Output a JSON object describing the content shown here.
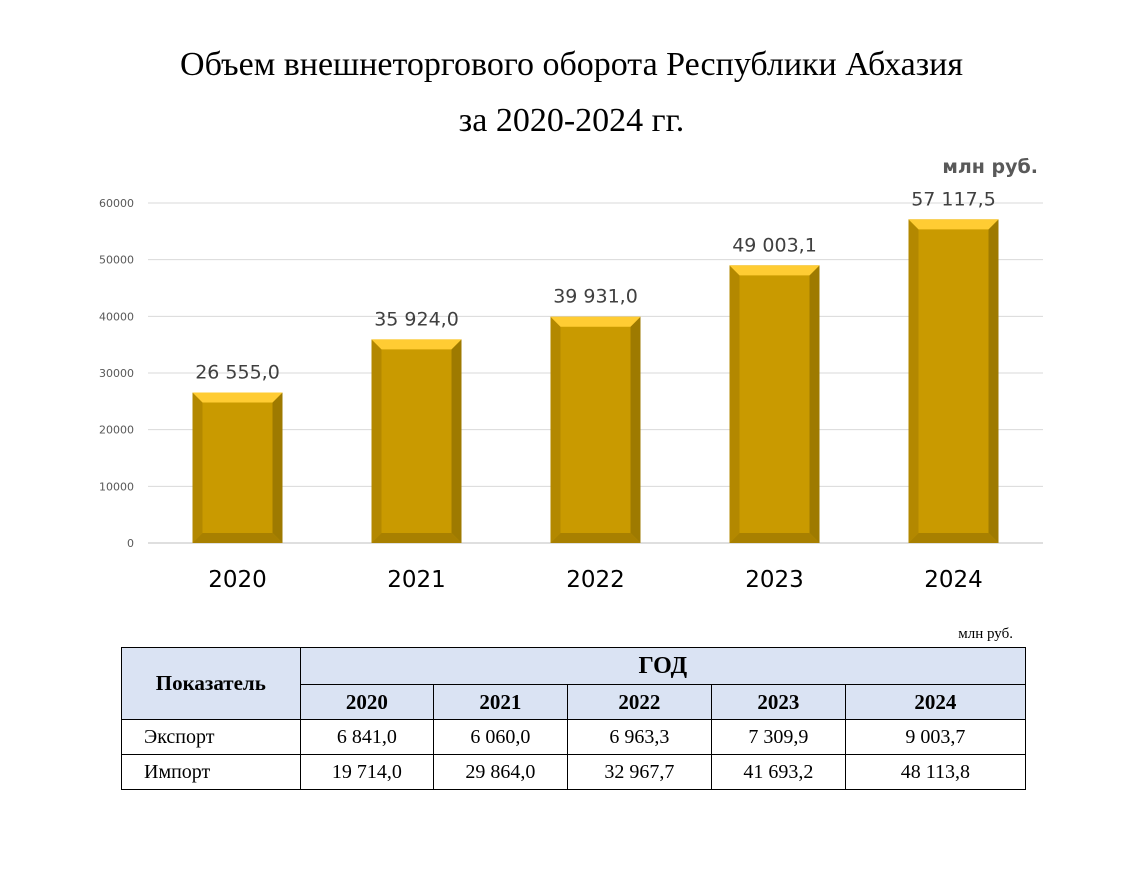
{
  "title_line1": "Объем внешнеторгового оборота Республики Абхазия",
  "title_line2": "за 2020-2024 гг.",
  "unit_chart": "млн руб.",
  "chart_data": {
    "type": "bar",
    "categories": [
      "2020",
      "2021",
      "2022",
      "2023",
      "2024"
    ],
    "values": [
      26555.0,
      35924.0,
      39931.0,
      49003.1,
      57117.5
    ],
    "value_labels": [
      "26 555,0",
      "35 924,0",
      "39 931,0",
      "49 003,1",
      "57 117,5"
    ],
    "y_ticks": [
      "0",
      "10000",
      "20000",
      "30000",
      "40000",
      "50000",
      "60000"
    ],
    "ylim": [
      0,
      60000
    ],
    "grid": true,
    "legend": "none",
    "bar_color": "#c99a00",
    "bar_top_color": "#ffcc33",
    "bar_side_color": "#9e7a00"
  },
  "table": {
    "unit": "млн руб.",
    "indicator_header": "Показатель",
    "group_header": "ГОД",
    "years": [
      "2020",
      "2021",
      "2022",
      "2023",
      "2024"
    ],
    "rows": [
      {
        "label": "Экспорт",
        "values": [
          "6 841,0",
          "6 060,0",
          "6 963,3",
          "7 309,9",
          "9 003,7"
        ]
      },
      {
        "label": "Импорт",
        "values": [
          "19 714,0",
          "29 864,0",
          "32 967,7",
          "41 693,2",
          "48 113,8"
        ]
      }
    ],
    "header_bg": "#dae3f3"
  }
}
